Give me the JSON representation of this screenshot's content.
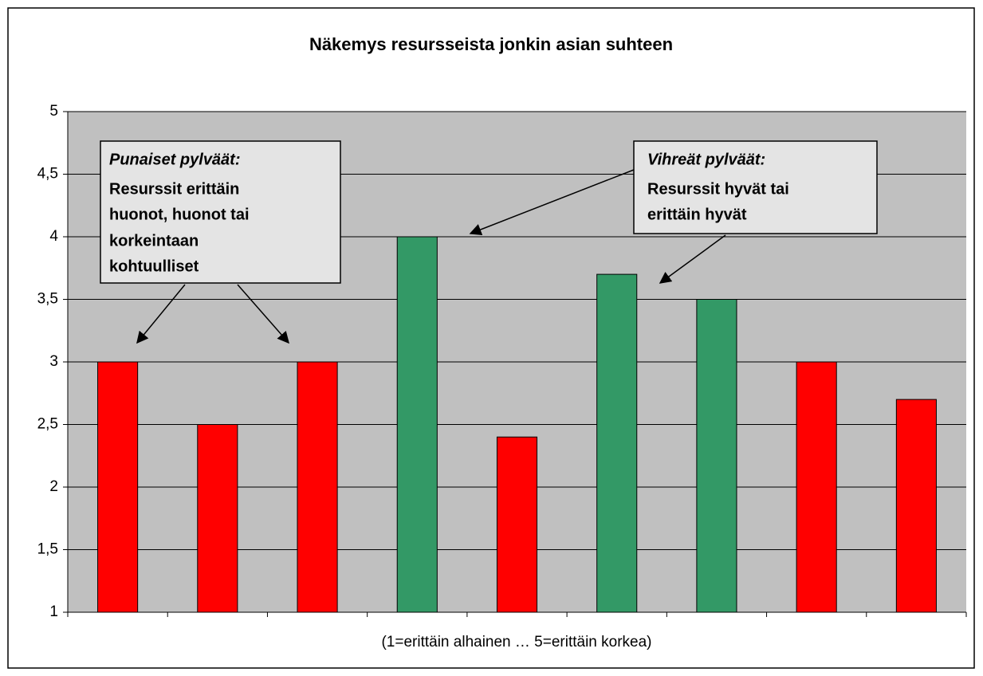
{
  "chart_data": {
    "type": "bar",
    "title": "Näkemys resursseista jonkin asian suhteen",
    "x_label": "(1=erittäin alhainen … 5=erittäin korkea)",
    "categories": [
      null,
      null,
      null,
      null,
      null,
      null,
      null,
      null,
      null
    ],
    "values": [
      3,
      2.5,
      3,
      4,
      2.4,
      3.7,
      3.5,
      3,
      2.7
    ],
    "colors": [
      "#ff0000",
      "#ff0000",
      "#ff0000",
      "#339966",
      "#ff0000",
      "#339966",
      "#339966",
      "#ff0000",
      "#ff0000"
    ],
    "ylim": [
      1,
      5
    ],
    "yticks": [
      1,
      {
        "value": 1.5,
        "label": "1,5"
      },
      2,
      {
        "value": 2.5,
        "label": "2,5"
      },
      3,
      {
        "value": 3.5,
        "label": "3,5"
      },
      4,
      {
        "value": 4.5,
        "label": "4,5"
      },
      5
    ],
    "grid": true,
    "annotations": [
      {
        "title": "Punaiset pylväät:",
        "lines": [
          "Resurssit erittäin",
          "huonot, huonot tai",
          "korkeintaan",
          "kohtuulliset"
        ]
      },
      {
        "title": "Vihreät pylväät:",
        "lines": [
          "Resurssit hyvät tai",
          "erittäin hyvät"
        ]
      }
    ]
  }
}
